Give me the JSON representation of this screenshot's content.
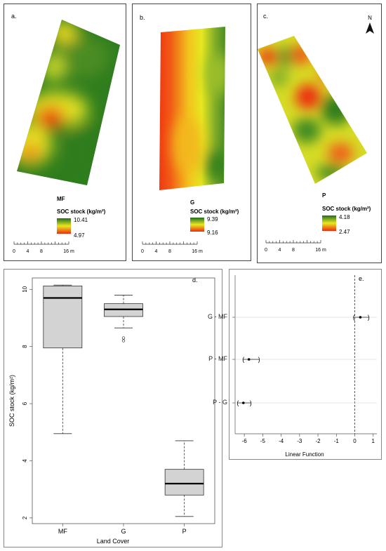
{
  "maps": [
    {
      "letter": "a.",
      "code": "MF",
      "legend_title": "SOC stock  (kg/m²)",
      "max": "10.41",
      "min": "4.97"
    },
    {
      "letter": "b.",
      "code": "G",
      "legend_title": "SOC stock  (kg/m²)",
      "max": "9.39",
      "min": "9.16"
    },
    {
      "letter": "c.",
      "code": "P",
      "legend_title": "SOC stock (kg/m²)",
      "max": "4.18",
      "min": "2.47"
    }
  ],
  "scale_bar": {
    "ticks": [
      "0",
      "4",
      "8",
      "16 m"
    ]
  },
  "north_label": "N",
  "colors": {
    "high": "#1f6f1f",
    "mid": "#e8e820",
    "low": "#ee2a10"
  },
  "chart_data": [
    {
      "type": "box",
      "panel_letter": "d.",
      "xlabel": "Land Cover",
      "ylabel": "SOC stock (kg/m²)",
      "ylim": [
        1.8,
        10.4
      ],
      "yticks": [
        "2",
        "4",
        "6",
        "8",
        "10"
      ],
      "categories": [
        "MF",
        "G",
        "P"
      ],
      "boxes": [
        {
          "min": 4.95,
          "q1": 7.95,
          "median": 9.7,
          "q3": 10.12,
          "max": 10.15,
          "outliers": []
        },
        {
          "min": 8.65,
          "q1": 9.05,
          "median": 9.3,
          "q3": 9.5,
          "max": 9.8,
          "outliers": [
            8.2,
            8.3
          ]
        },
        {
          "min": 2.05,
          "q1": 2.8,
          "median": 3.2,
          "q3": 3.7,
          "max": 4.7,
          "outliers": []
        }
      ]
    },
    {
      "type": "interval",
      "panel_letter": "e.",
      "xlabel": "Linear Function",
      "xlim": [
        -6.5,
        1.2
      ],
      "xticks": [
        "-6",
        "-5",
        "-4",
        "-3",
        "-2",
        "-1",
        "0",
        "1"
      ],
      "categories": [
        "G - MF",
        "P - MF",
        "P - G"
      ],
      "estimates": [
        0.3,
        -5.75,
        -6.05
      ],
      "lower": [
        -0.05,
        -6.05,
        -6.35
      ],
      "upper": [
        0.75,
        -5.2,
        -5.65
      ]
    }
  ]
}
